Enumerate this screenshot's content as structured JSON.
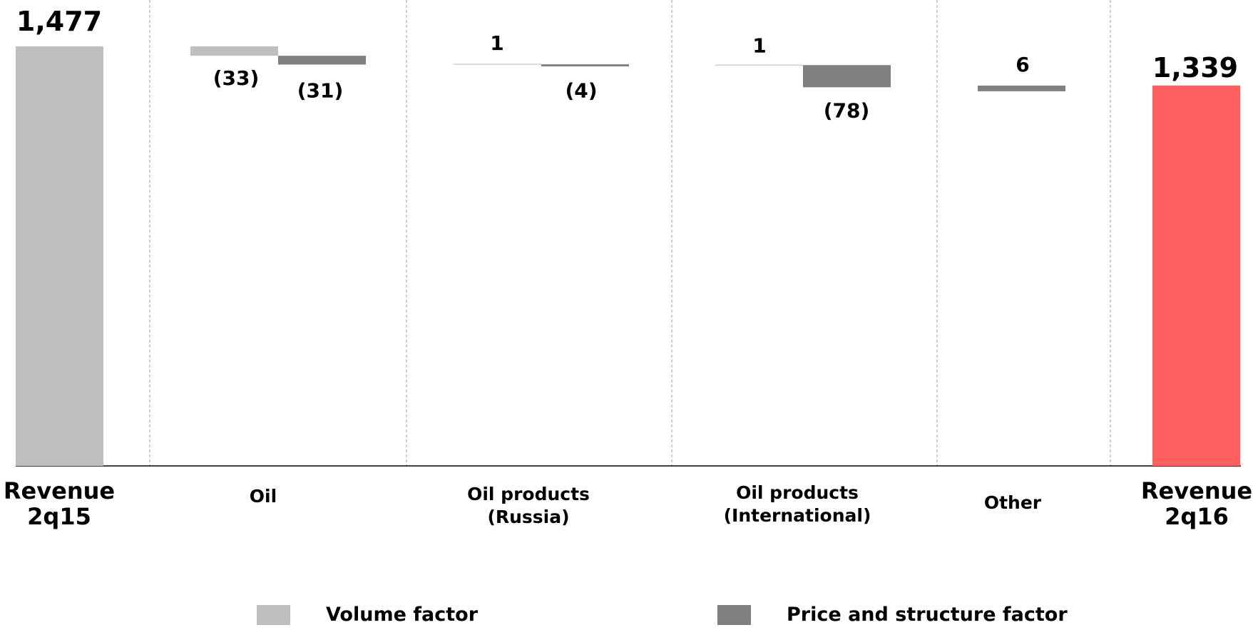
{
  "chart_data": {
    "type": "bar",
    "subtype": "waterfall",
    "start": {
      "label": "Revenue 2q15",
      "value": 1477,
      "label_text": "1,477",
      "color": "#BFBFBF"
    },
    "end": {
      "label": "Revenue 2q16",
      "value": 1339,
      "label_text": "1,339",
      "color": "#FF5F5F"
    },
    "categories": [
      {
        "name": "Oil",
        "lines": [
          "Oil"
        ],
        "volume": -33,
        "price": -31,
        "volume_label": "(33)",
        "price_label": "(31)"
      },
      {
        "name": "Oil products (Russia)",
        "lines": [
          "Oil products",
          "(Russia)"
        ],
        "volume": 1,
        "price": -4,
        "volume_label": "1",
        "price_label": "(4)"
      },
      {
        "name": "Oil products (International)",
        "lines": [
          "Oil products",
          "(International)"
        ],
        "volume": 1,
        "price": -78,
        "volume_label": "1",
        "price_label": "(78)"
      },
      {
        "name": "Other",
        "lines": [
          "Other"
        ],
        "value": 6,
        "value_label": "6"
      }
    ],
    "start_lines": [
      "Revenue",
      "2q15"
    ],
    "end_lines": [
      "Revenue",
      "2q16"
    ],
    "series": [
      {
        "name": "Volume factor",
        "color": "#BFBFBF"
      },
      {
        "name": "Price and structure factor",
        "color": "#808080"
      }
    ],
    "ylim": [
      0,
      1500
    ],
    "grid": false,
    "legend_position": "bottom"
  }
}
